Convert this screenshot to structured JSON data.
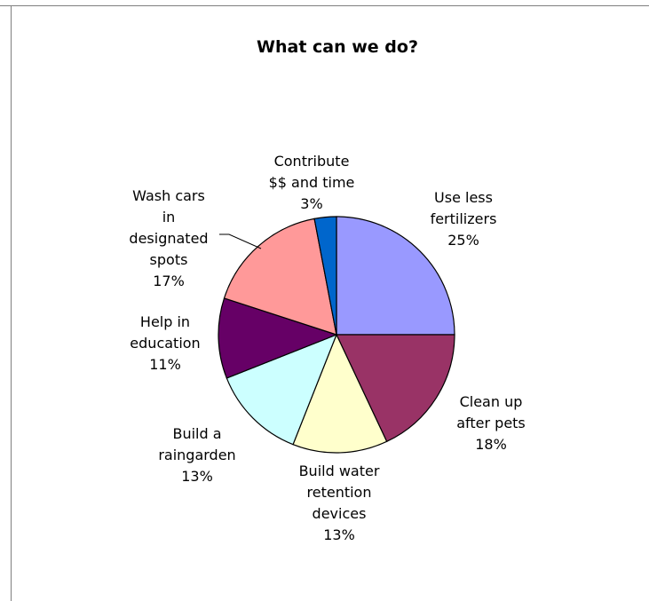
{
  "chart_data": {
    "type": "pie",
    "title": "What can we do?",
    "slices": [
      {
        "lines": [
          "Use less",
          "fertilizers"
        ],
        "pct": "25%",
        "value": 25,
        "color": "#9999ff"
      },
      {
        "lines": [
          "Clean up",
          "after pets"
        ],
        "pct": "18%",
        "value": 18,
        "color": "#993366"
      },
      {
        "lines": [
          "Build water",
          "retention",
          "devices"
        ],
        "pct": "13%",
        "value": 13,
        "color": "#ffffcc"
      },
      {
        "lines": [
          "Build a",
          "raingarden"
        ],
        "pct": "13%",
        "value": 13,
        "color": "#ccffff"
      },
      {
        "lines": [
          "Help in",
          "education"
        ],
        "pct": "11%",
        "value": 11,
        "color": "#660066"
      },
      {
        "lines": [
          "Wash cars",
          "in",
          "designated",
          "spots"
        ],
        "pct": "17%",
        "value": 17,
        "color": "#ff9999"
      },
      {
        "lines": [
          "Contribute",
          "$$ and time"
        ],
        "pct": "3%",
        "value": 3,
        "color": "#0066cc"
      }
    ]
  }
}
